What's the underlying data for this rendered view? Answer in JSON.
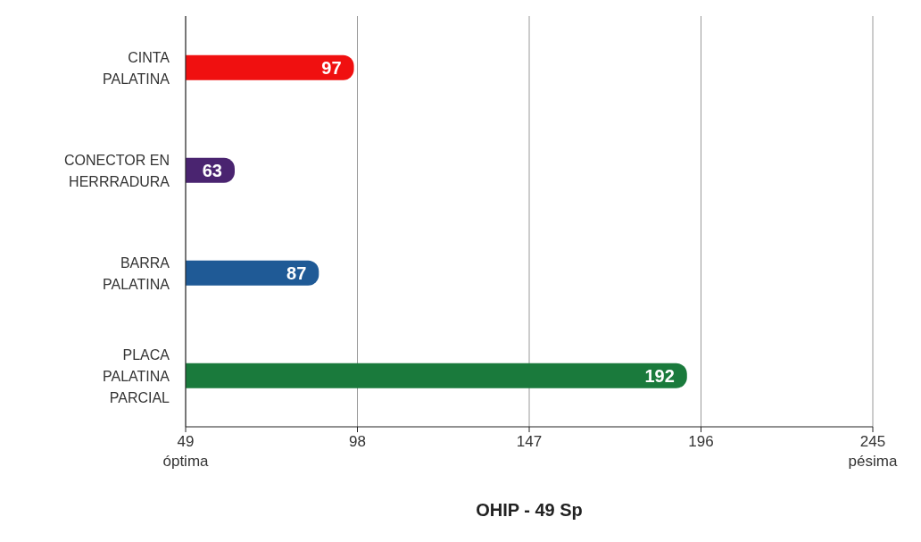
{
  "chart_data": {
    "type": "bar",
    "orientation": "horizontal",
    "xlabel": "OHIP - 49 Sp",
    "categories": [
      "CINTA PALATINA",
      "CONECTOR EN HERRRADURA",
      "BARRA PALATINA",
      "PLACA PALATINA PARCIAL"
    ],
    "values": [
      97,
      63,
      87,
      192
    ],
    "colors": [
      "#f01010",
      "#4a2470",
      "#1f5a96",
      "#1a7a3c"
    ],
    "xlim": [
      49,
      245
    ],
    "xticks": [
      {
        "value": 49,
        "label": "49\nóptima"
      },
      98,
      147,
      196,
      {
        "value": 245,
        "label": "245\npésima"
      }
    ],
    "grid": "x",
    "data_labels": true,
    "legend": false
  }
}
